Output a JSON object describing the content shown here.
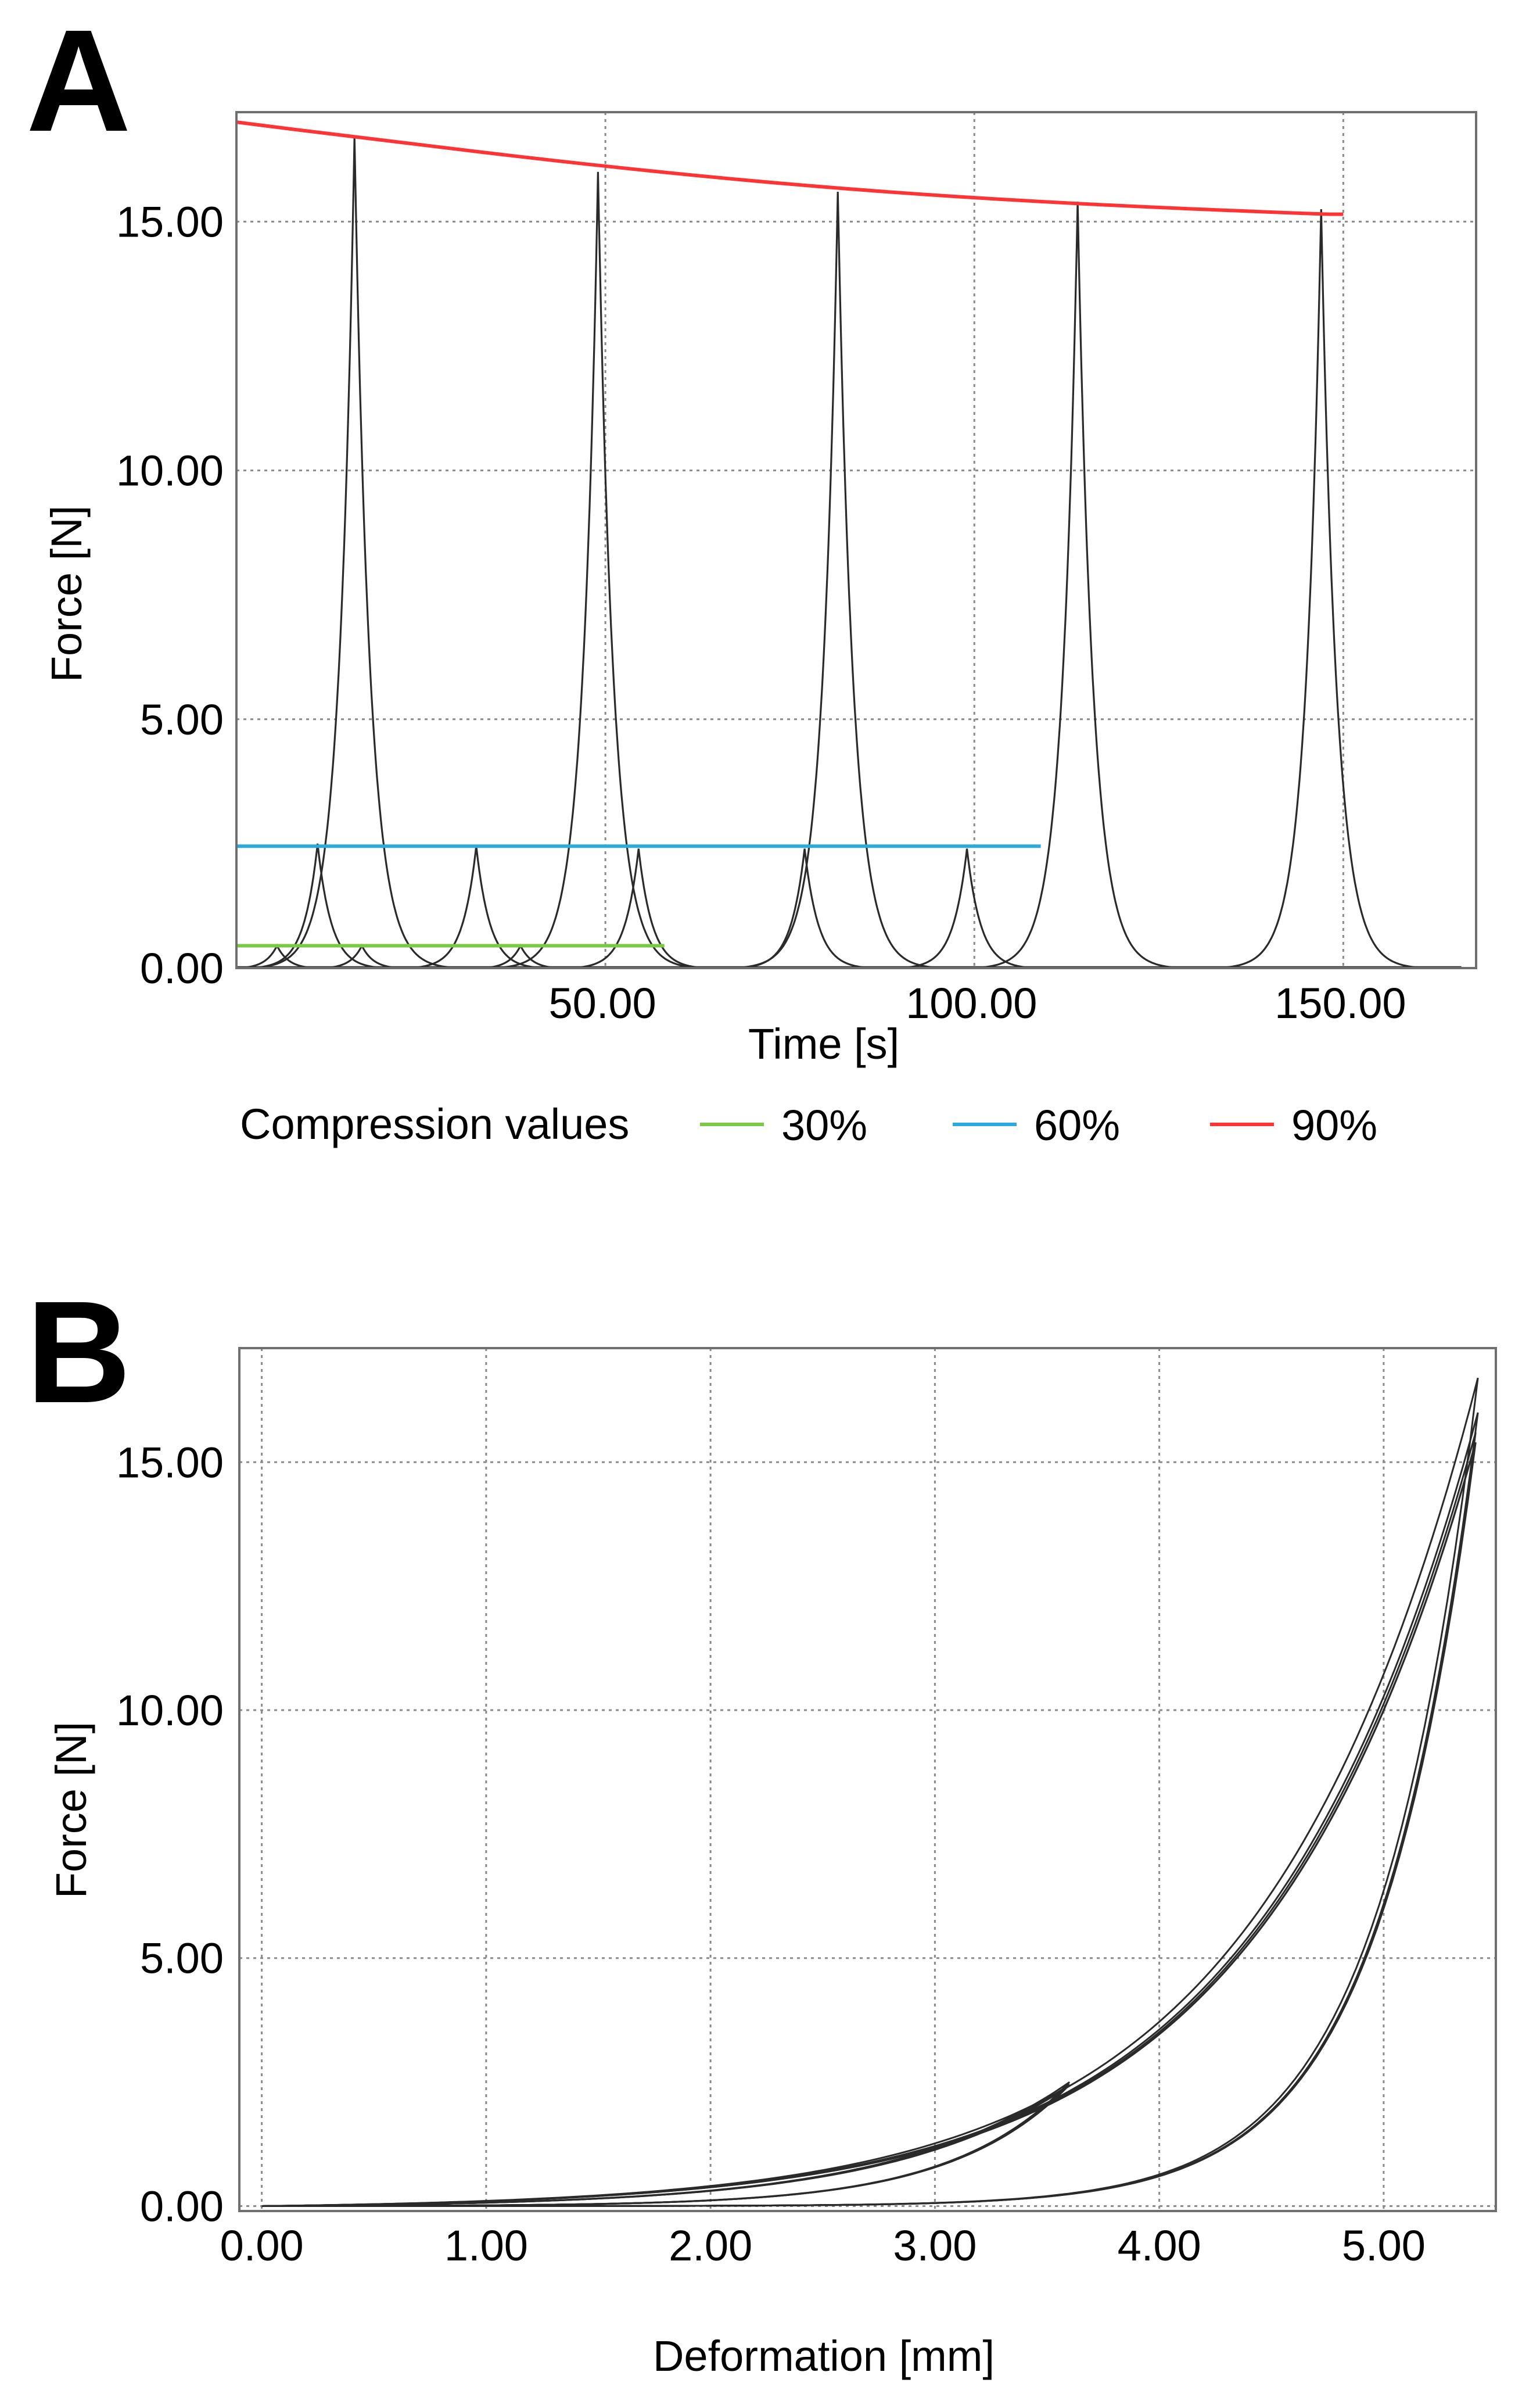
{
  "chart_data": [
    {
      "panel": "A",
      "type": "line",
      "xlabel": "Time [s]",
      "ylabel": "Force [N]",
      "xlim": [
        0,
        168
      ],
      "ylim": [
        0,
        17.2
      ],
      "grid": true,
      "x_ticks": [
        50,
        100,
        150
      ],
      "x_tick_labels": [
        "50.00",
        "100.00",
        "150.00"
      ],
      "y_ticks": [
        0,
        5,
        10,
        15
      ],
      "y_tick_labels": [
        "0.00",
        "5.00",
        "10.00",
        "15.00"
      ],
      "legend_title": "Compression values",
      "legend_position": "bottom",
      "series": [
        {
          "name": "30%",
          "color": "#7ac943",
          "x": [
            0,
            58
          ],
          "values": [
            0.45,
            0.45
          ]
        },
        {
          "name": "60%",
          "color": "#29abe2",
          "x": [
            0,
            109
          ],
          "values": [
            2.45,
            2.45
          ]
        },
        {
          "name": "90%",
          "color": "#ff3333",
          "x": [
            0,
            16,
            50,
            82,
            114,
            147,
            150
          ],
          "values": [
            17.0,
            16.7,
            16.1,
            15.65,
            15.35,
            15.15,
            15.15
          ]
        }
      ],
      "peaks": [
        {
          "t": 5.5,
          "f": 0.45
        },
        {
          "t": 11,
          "f": 2.5
        },
        {
          "t": 17,
          "f": 0.45
        },
        {
          "t": 32.5,
          "f": 2.45
        },
        {
          "t": 38.5,
          "f": 0.45
        },
        {
          "t": 54.5,
          "f": 2.4
        },
        {
          "t": 77,
          "f": 2.4
        },
        {
          "t": 99,
          "f": 2.4
        },
        {
          "t": 16,
          "f": 16.7
        },
        {
          "t": 49,
          "f": 16.0
        },
        {
          "t": 81.5,
          "f": 15.6
        },
        {
          "t": 114,
          "f": 15.4
        },
        {
          "t": 147,
          "f": 15.25
        }
      ]
    },
    {
      "panel": "B",
      "type": "line",
      "xlabel": "Deformation [mm]",
      "ylabel": "Force [N]",
      "xlim": [
        -0.1,
        5.5
      ],
      "ylim": [
        -0.1,
        17.3
      ],
      "grid": true,
      "x_ticks": [
        0,
        1,
        2,
        3,
        4,
        5
      ],
      "x_tick_labels": [
        "0.00",
        "1.00",
        "2.00",
        "3.00",
        "4.00",
        "5.00"
      ],
      "y_ticks": [
        0,
        5,
        10,
        15
      ],
      "y_tick_labels": [
        "0.00",
        "5.00",
        "10.00",
        "15.00"
      ],
      "loops": [
        {
          "dmax": 3.6,
          "fmax": 2.5
        },
        {
          "dmax": 3.6,
          "fmax": 2.45
        },
        {
          "dmax": 3.59,
          "fmax": 2.42
        },
        {
          "dmax": 3.59,
          "fmax": 2.4
        },
        {
          "dmax": 5.42,
          "fmax": 16.7
        },
        {
          "dmax": 5.42,
          "fmax": 16.0
        },
        {
          "dmax": 5.41,
          "fmax": 15.6
        },
        {
          "dmax": 5.41,
          "fmax": 15.4
        },
        {
          "dmax": 5.4,
          "fmax": 15.25
        }
      ]
    }
  ]
}
